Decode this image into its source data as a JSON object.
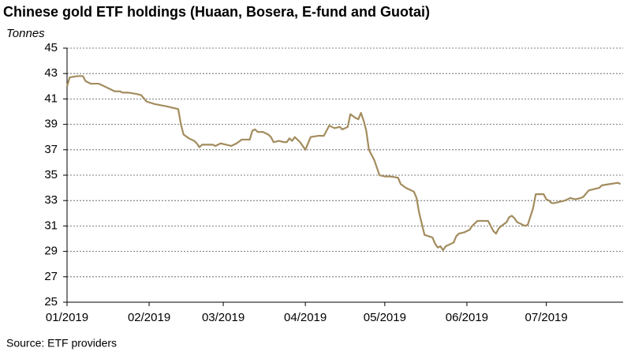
{
  "chart_data": {
    "type": "line",
    "title": "Chinese gold ETF holdings (Huaan, Bosera, E-fund and Guotai)",
    "y_label": "Tonnes",
    "source": "Source: ETF providers",
    "x": [
      0,
      1,
      4,
      6,
      7,
      9,
      12,
      14,
      16,
      18,
      20,
      21,
      23,
      26,
      28,
      30,
      33,
      38,
      42,
      43,
      44,
      46,
      48,
      49,
      50,
      51,
      53,
      55,
      56,
      58,
      60,
      62,
      64,
      66,
      69,
      70,
      71,
      72,
      74,
      76,
      77,
      78,
      80,
      82,
      83,
      84,
      85,
      86,
      88,
      90,
      92,
      95,
      97,
      99,
      100,
      101,
      103,
      104,
      106,
      107,
      109,
      110,
      111,
      112,
      113,
      114,
      116,
      118,
      120,
      122,
      125,
      126,
      128,
      129,
      131,
      132,
      133,
      135,
      138,
      139,
      140,
      141,
      142,
      143,
      145,
      146,
      147,
      148,
      150,
      152,
      153,
      155,
      159,
      160,
      161,
      162,
      163,
      164,
      166,
      167,
      168,
      169,
      170,
      172,
      173,
      174,
      176,
      177,
      180,
      181,
      182,
      183,
      184,
      186,
      188,
      190,
      192,
      194,
      195,
      197,
      199,
      201,
      202,
      205,
      208,
      209
    ],
    "series": [
      {
        "name": "Chinese gold ETF holdings",
        "color": "#a38c5e",
        "values": [
          42.0,
          42.7,
          42.8,
          42.8,
          42.4,
          42.2,
          42.2,
          42.0,
          41.8,
          41.6,
          41.6,
          41.5,
          41.5,
          41.4,
          41.3,
          40.8,
          40.6,
          40.4,
          40.2,
          39.0,
          38.2,
          37.9,
          37.7,
          37.5,
          37.2,
          37.4,
          37.4,
          37.4,
          37.3,
          37.5,
          37.4,
          37.3,
          37.5,
          37.8,
          37.8,
          38.5,
          38.6,
          38.4,
          38.4,
          38.2,
          38.0,
          37.6,
          37.7,
          37.6,
          37.6,
          37.9,
          37.7,
          38.0,
          37.6,
          37.0,
          38.0,
          38.1,
          38.1,
          38.9,
          38.8,
          38.7,
          38.8,
          38.6,
          38.8,
          39.8,
          39.5,
          39.4,
          39.9,
          39.3,
          38.5,
          37.0,
          36.2,
          35.0,
          34.9,
          34.9,
          34.8,
          34.3,
          34.0,
          33.9,
          33.7,
          33.2,
          32.0,
          30.3,
          30.1,
          29.6,
          29.3,
          29.4,
          29.1,
          29.4,
          29.6,
          29.7,
          30.2,
          30.4,
          30.5,
          30.7,
          31.0,
          31.4,
          31.4,
          31.0,
          30.6,
          30.4,
          30.8,
          31.0,
          31.3,
          31.7,
          31.8,
          31.6,
          31.3,
          31.1,
          31.0,
          31.1,
          32.4,
          33.5,
          33.5,
          33.1,
          33.0,
          32.8,
          32.8,
          32.9,
          33.0,
          33.2,
          33.1,
          33.2,
          33.3,
          33.8,
          33.9,
          34.0,
          34.2,
          34.3,
          34.4,
          34.3
        ]
      }
    ],
    "xlim": [
      0,
      210
    ],
    "xticks": [
      {
        "value": 0,
        "label": "01/2019"
      },
      {
        "value": 31,
        "label": "02/2019"
      },
      {
        "value": 59,
        "label": "03/2019"
      },
      {
        "value": 90,
        "label": "04/2019"
      },
      {
        "value": 120,
        "label": "05/2019"
      },
      {
        "value": 151,
        "label": "06/2019"
      },
      {
        "value": 181,
        "label": "07/2019"
      }
    ],
    "ylim": [
      25,
      45
    ],
    "yticks": [
      25,
      27,
      29,
      31,
      33,
      35,
      37,
      39,
      41,
      43,
      45
    ],
    "grid": true
  }
}
